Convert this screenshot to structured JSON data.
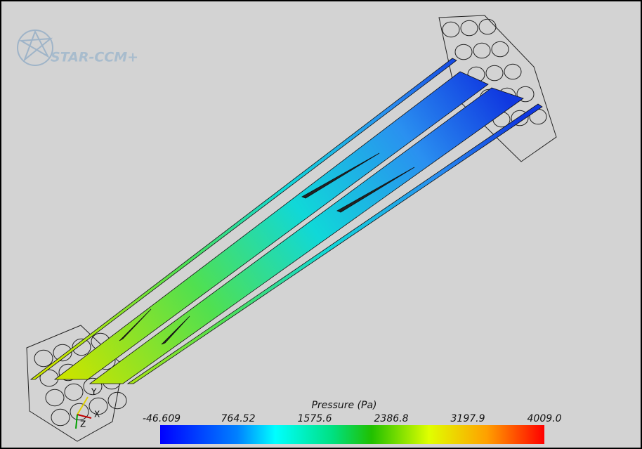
{
  "logo": {
    "text": "STAR-CCM+"
  },
  "triad": {
    "x": "X",
    "y": "Y",
    "z": "Z"
  },
  "colorbar": {
    "title": "Pressure (Pa)",
    "labels": [
      "-46.609",
      "764.52",
      "1575.6",
      "2386.8",
      "3197.9",
      "4009.0"
    ]
  }
}
